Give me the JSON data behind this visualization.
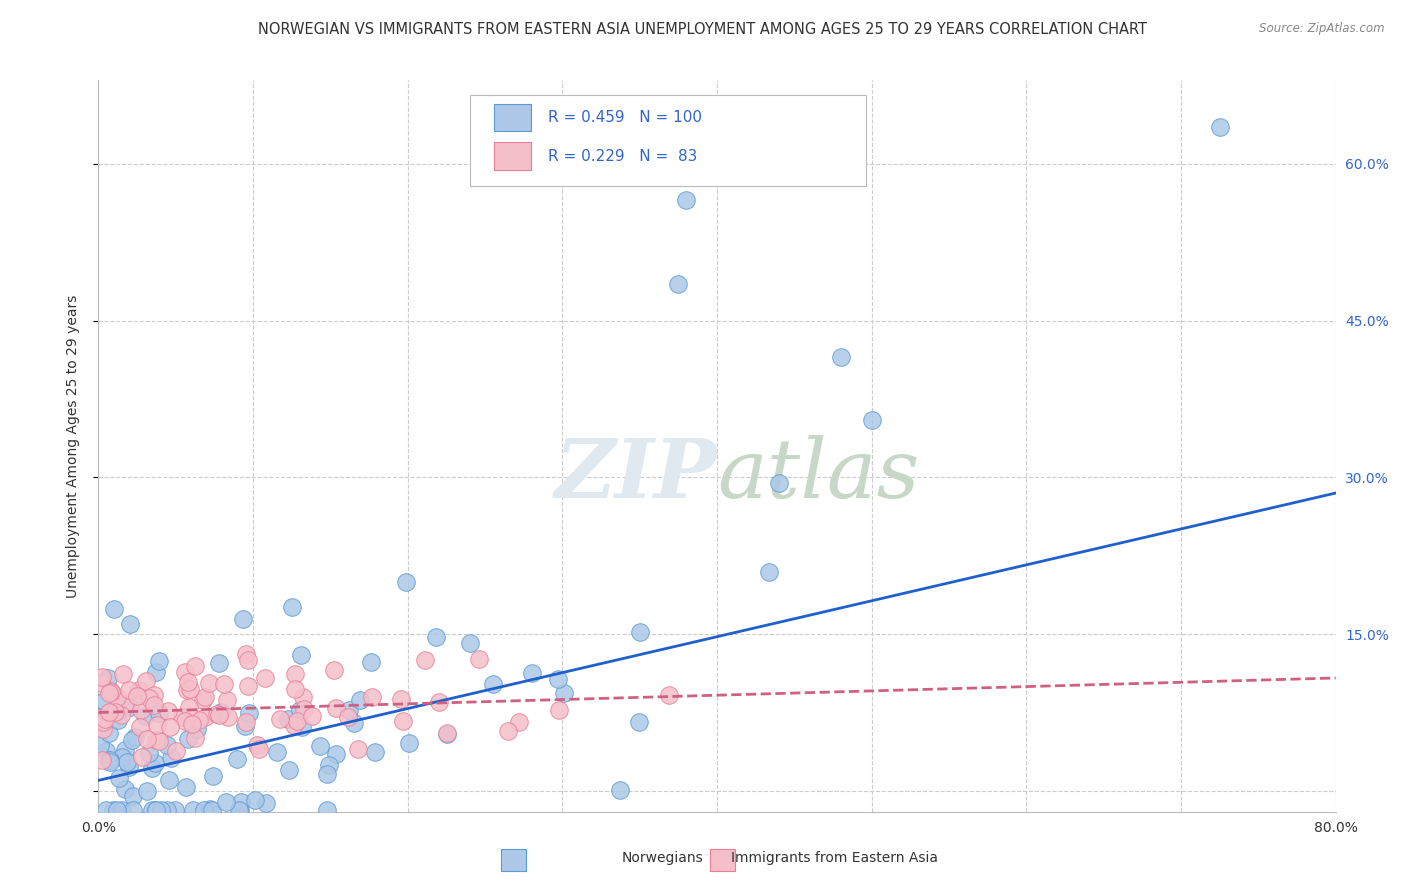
{
  "title": "NORWEGIAN VS IMMIGRANTS FROM EASTERN ASIA UNEMPLOYMENT AMONG AGES 25 TO 29 YEARS CORRELATION CHART",
  "source": "Source: ZipAtlas.com",
  "ylabel": "Unemployment Among Ages 25 to 29 years",
  "xlim": [
    0.0,
    0.8
  ],
  "ylim": [
    -0.02,
    0.68
  ],
  "ytick_positions": [
    0.0,
    0.15,
    0.3,
    0.45,
    0.6
  ],
  "ytick_labels": [
    "",
    "15.0%",
    "30.0%",
    "45.0%",
    "60.0%"
  ],
  "R_norwegian": 0.459,
  "N_norwegian": 100,
  "R_immigrants": 0.229,
  "N_immigrants": 83,
  "norwegian_color": "#adc8e8",
  "norwegian_edge_color": "#5b9bd5",
  "immigrant_color": "#f5bfca",
  "immigrant_edge_color": "#e87f96",
  "line_norwegian_color": "#2060cc",
  "line_immigrant_color": "#d06080",
  "background_color": "#ffffff",
  "grid_color": "#cccccc",
  "watermark_color": "#e0e8f0",
  "legend_color_nor": "#adc8e8",
  "legend_edge_nor": "#5b9bd5",
  "legend_color_imm": "#f5bfca",
  "legend_edge_imm": "#e87f96",
  "text_color_blue": "#3366cc",
  "text_color_dark": "#333333",
  "title_fontsize": 10.5,
  "tick_label_fontsize": 10,
  "legend_fontsize": 11,
  "ylabel_fontsize": 10,
  "seed": 42,
  "nor_line_x0": 0.0,
  "nor_line_y0": 0.01,
  "nor_line_x1": 0.8,
  "nor_line_y1": 0.285,
  "imm_line_x0": 0.0,
  "imm_line_y0": 0.075,
  "imm_line_x1": 0.8,
  "imm_line_y1": 0.108
}
